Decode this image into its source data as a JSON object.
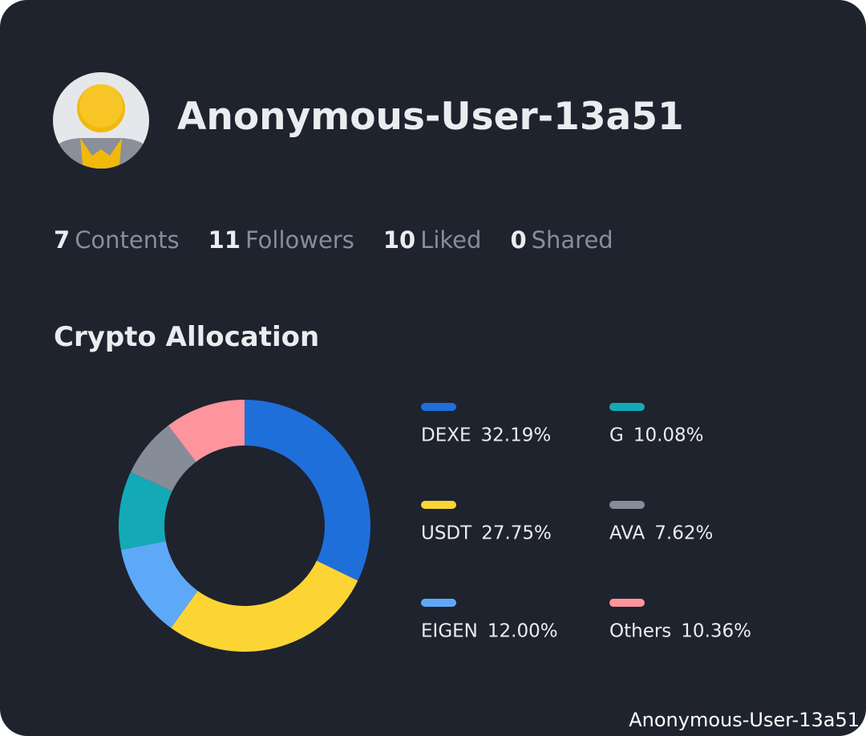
{
  "profile": {
    "name": "Anonymous-User-13a51",
    "stats": [
      {
        "count": "7",
        "label": "Contents"
      },
      {
        "count": "11",
        "label": "Followers"
      },
      {
        "count": "10",
        "label": "Liked"
      },
      {
        "count": "0",
        "label": "Shared"
      }
    ]
  },
  "chart_data": {
    "type": "pie",
    "donut": true,
    "title": "Crypto Allocation",
    "categories": [
      "DEXE",
      "USDT",
      "EIGEN",
      "G",
      "AVA",
      "Others"
    ],
    "values": [
      32.19,
      27.75,
      12.0,
      10.08,
      7.62,
      10.36
    ],
    "value_labels": [
      "32.19%",
      "27.75%",
      "12.00%",
      "10.08%",
      "7.62%",
      "10.36%"
    ],
    "colors": [
      "#1f6fdb",
      "#fcd535",
      "#5ea9f7",
      "#14aab5",
      "#868c98",
      "#fe959c"
    ]
  },
  "watermark": "Anonymous-User-13a51"
}
